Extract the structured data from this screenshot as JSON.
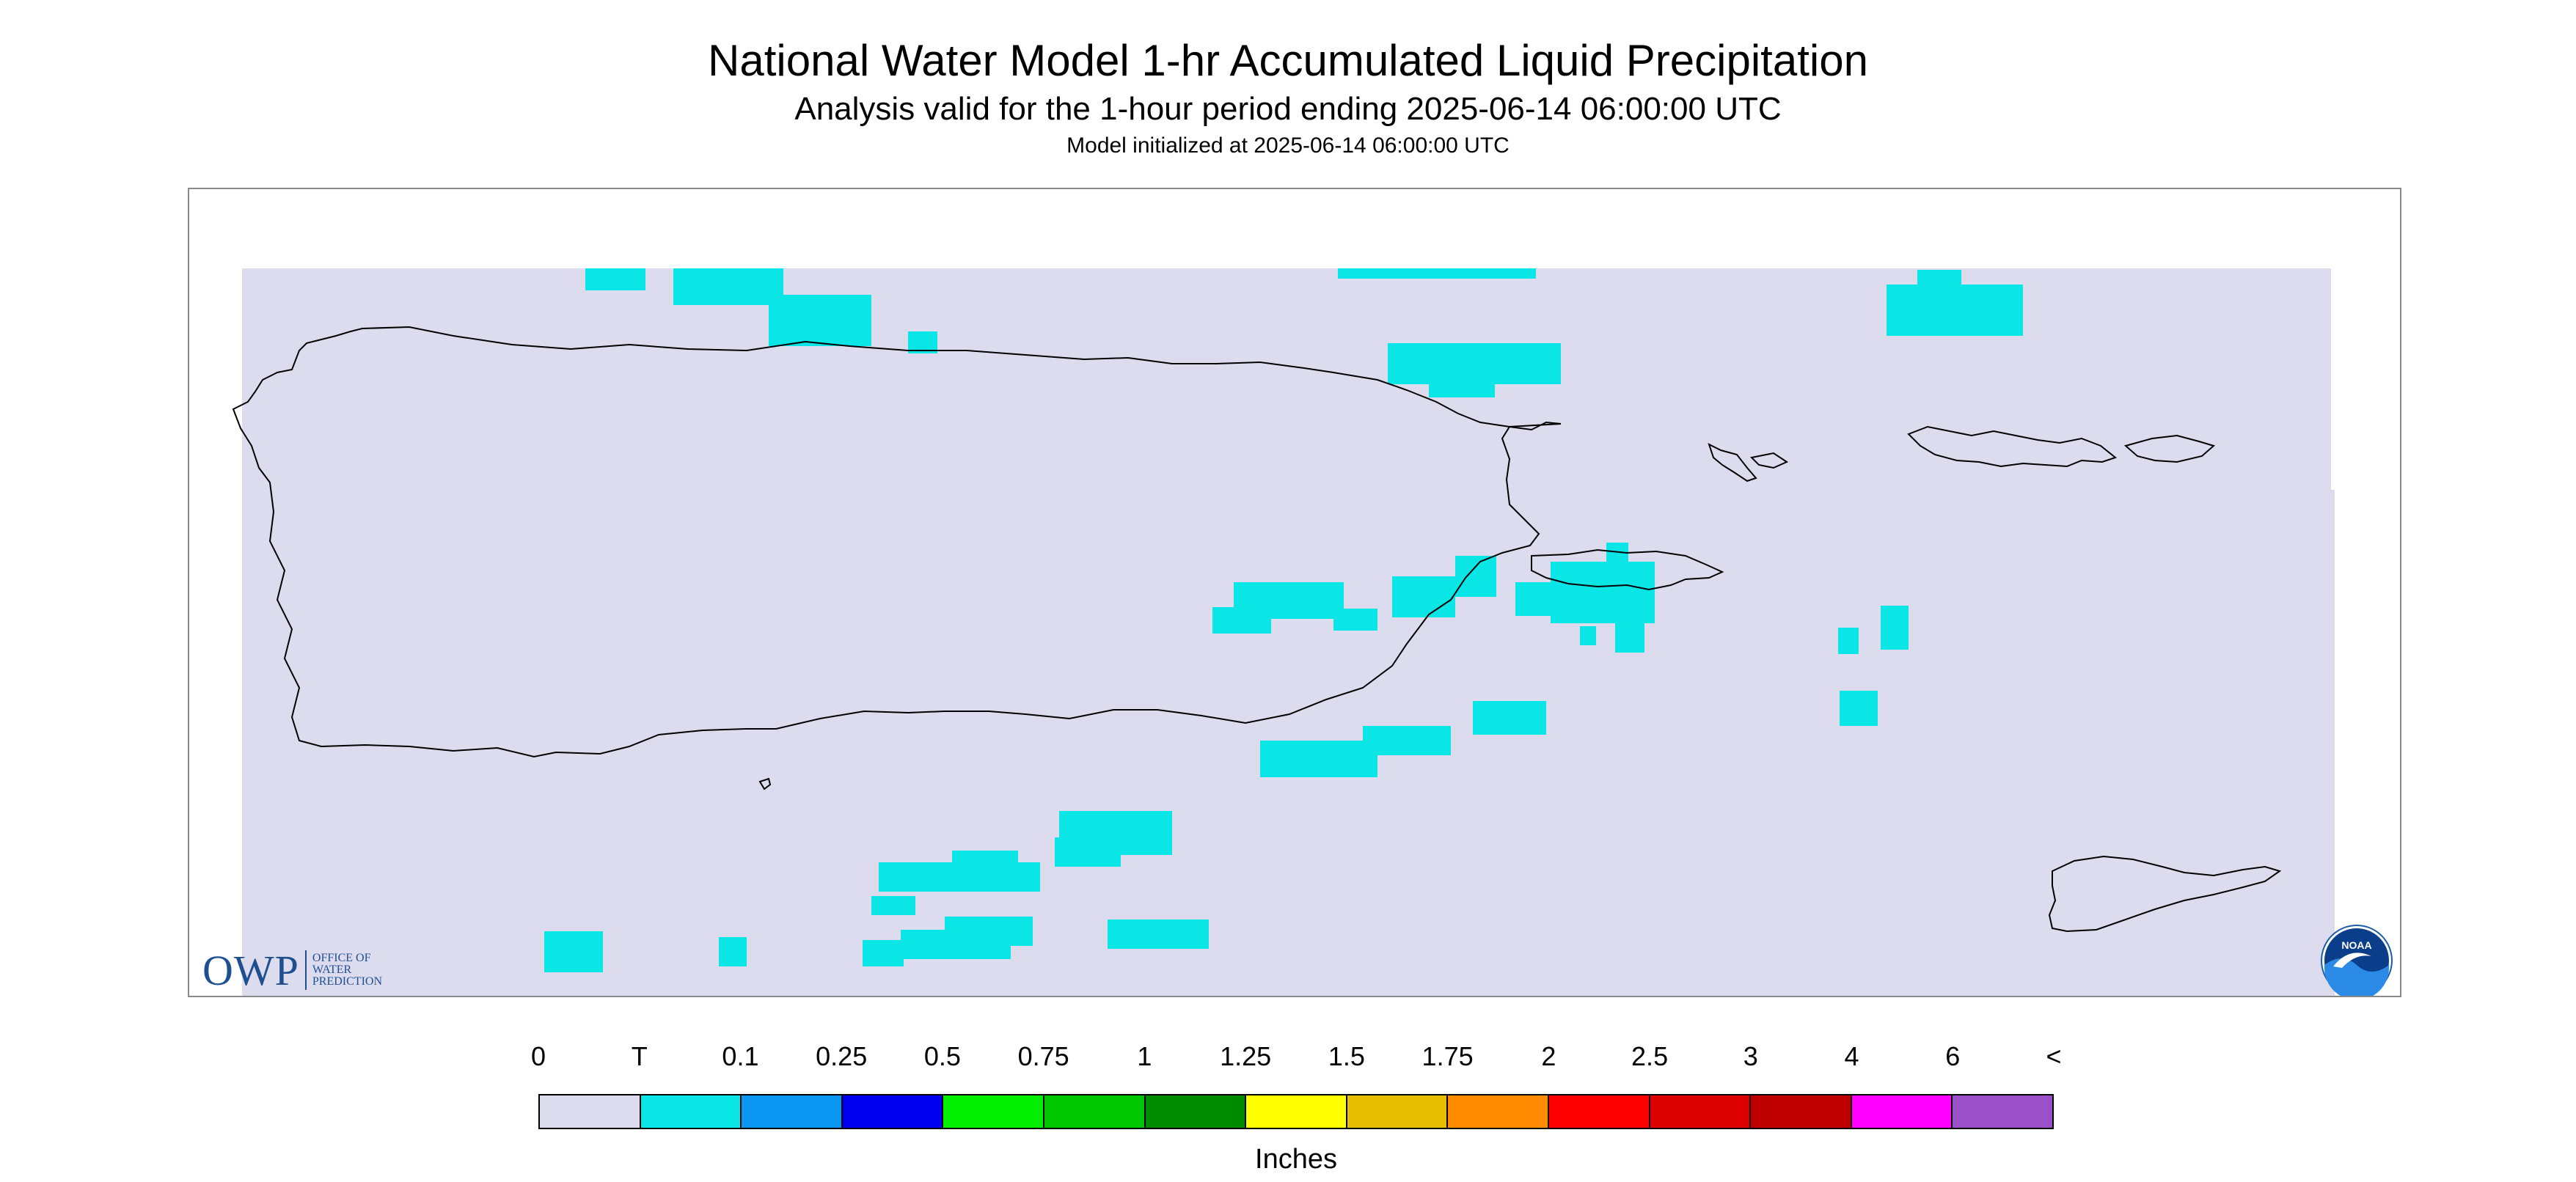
{
  "header": {
    "title": "National Water Model 1-hr Accumulated Liquid Precipitation",
    "subtitle": "Analysis valid for the 1-hour period ending 2025-06-14 06:00:00 UTC",
    "init_line": "Model initialized at 2025-06-14 06:00:00 UTC"
  },
  "map": {
    "region": "Puerto Rico and U.S. Virgin Islands",
    "background_color": "#dcdcee",
    "precip_color": "#0ae6e6",
    "coastline_color": "#000000"
  },
  "logos": {
    "owp_mark": "OWP",
    "owp_lines": [
      "OFFICE OF",
      "WATER",
      "PREDICTION"
    ],
    "noaa_text": "NOAA"
  },
  "legend": {
    "labels": [
      "0",
      "T",
      "0.1",
      "0.25",
      "0.5",
      "0.75",
      "1",
      "1.25",
      "1.5",
      "1.75",
      "2",
      "2.5",
      "3",
      "4",
      "6",
      "<"
    ],
    "colors": [
      "#dcdcee",
      "#0ae6e6",
      "#0a96f0",
      "#0000f0",
      "#00f000",
      "#00c800",
      "#008c00",
      "#ffff00",
      "#e6be00",
      "#ff8c00",
      "#ff0000",
      "#dc0000",
      "#be0000",
      "#ff00ff",
      "#9a50c8"
    ],
    "units": "Inches"
  }
}
